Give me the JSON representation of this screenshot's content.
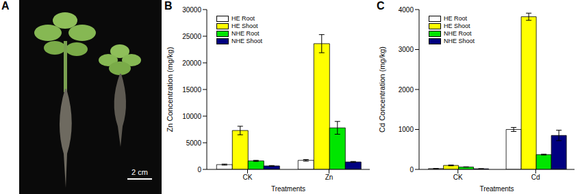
{
  "image_panel": {
    "panel_label": "A",
    "scale_bar": "2 cm"
  },
  "chart_data": [
    {
      "type": "bar",
      "panel_label": "B",
      "x_label": "Treatments",
      "y_label": "Zn Concentration (mg/kg)",
      "categories": [
        "CK",
        "Zn"
      ],
      "series": [
        {
          "name": "HE Root",
          "color": "#ffffff",
          "values": [
            900,
            1700
          ],
          "errors": [
            100,
            150
          ]
        },
        {
          "name": "HE Shoot",
          "color": "#ffff00",
          "values": [
            7300,
            23600
          ],
          "errors": [
            800,
            1700
          ]
        },
        {
          "name": "NHE Root",
          "color": "#00e600",
          "values": [
            1600,
            7800
          ],
          "errors": [
            100,
            1200
          ]
        },
        {
          "name": "NHE Shoot",
          "color": "#000080",
          "values": [
            650,
            1400
          ],
          "errors": [
            80,
            100
          ]
        }
      ],
      "ylim": [
        0,
        30000
      ],
      "yticks": [
        0,
        5000,
        10000,
        15000,
        20000,
        25000,
        30000
      ],
      "grid": false,
      "legend": "upper left"
    },
    {
      "type": "bar",
      "panel_label": "C",
      "x_label": "Treatments",
      "y_label": "Cd Concentration (mg/kg)",
      "categories": [
        "CK",
        "Cd"
      ],
      "series": [
        {
          "name": "HE Root",
          "color": "#ffffff",
          "values": [
            20,
            1000
          ],
          "errors": [
            5,
            50
          ]
        },
        {
          "name": "HE Shoot",
          "color": "#ffff00",
          "values": [
            100,
            3820
          ],
          "errors": [
            10,
            90
          ]
        },
        {
          "name": "NHE Root",
          "color": "#00e600",
          "values": [
            60,
            370
          ],
          "errors": [
            5,
            10
          ]
        },
        {
          "name": "NHE Shoot",
          "color": "#000080",
          "values": [
            15,
            850
          ],
          "errors": [
            3,
            130
          ]
        }
      ],
      "ylim": [
        0,
        4000
      ],
      "yticks": [
        0,
        1000,
        2000,
        3000,
        4000
      ],
      "grid": false,
      "legend": "upper left"
    }
  ]
}
